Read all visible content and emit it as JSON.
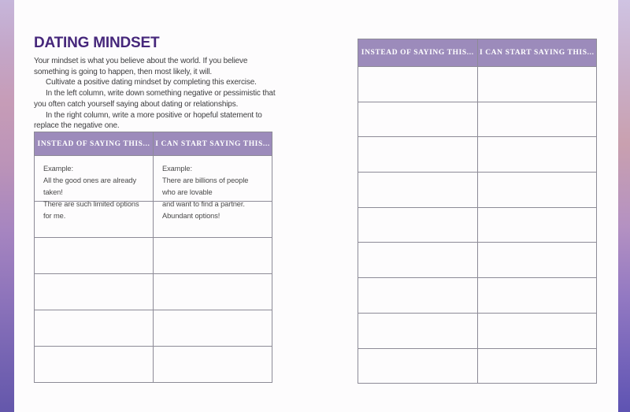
{
  "title": "DATING MINDSET",
  "intro": {
    "paragraphs": [
      "Your mindset is what you believe about the world. If you believe something is going to happen, then most likely, it will.",
      "Cultivate a positive dating mindset by completing this exercise.",
      "In the left column, write down something negative or pessimistic that you often catch yourself saying about dating or relationships.",
      "In the right column, write a more positive or hopeful statement to replace the negative one."
    ]
  },
  "table": {
    "headers": [
      "INSTEAD OF SAYING THIS...",
      "I CAN START SAYING THIS..."
    ],
    "example": {
      "left": [
        "Example:",
        "All the good ones are already taken!",
        "There are such limited options for me."
      ],
      "right": [
        "Example:",
        "There are billions of people who are lovable",
        "and want to find a partner. Abundant options!"
      ]
    },
    "left_empty_row_count": 5,
    "right_empty_row_count": 9
  },
  "colors": {
    "title_text": "#46277b",
    "header_bg": "#9c8bbb",
    "header_text": "#ffffff",
    "table_border": "#8d8b97",
    "body_text": "#3e3e40",
    "edge_gradient_top": "#c6b6da",
    "edge_gradient_pink": "#c69cb7",
    "edge_gradient_bottom": "#6457ab"
  }
}
